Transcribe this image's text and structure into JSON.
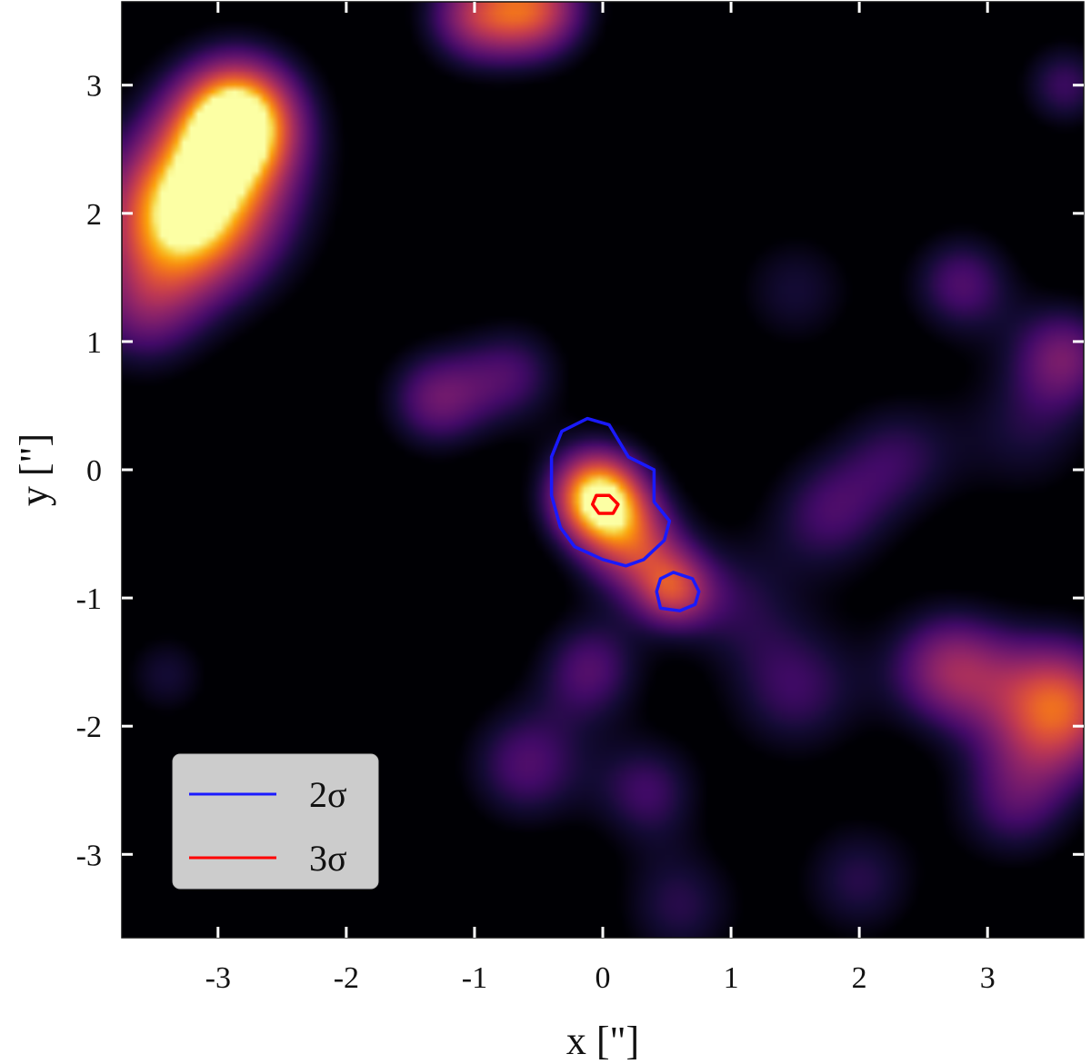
{
  "chart_data": {
    "type": "heatmap",
    "colormap": "inferno",
    "xlabel": "x [\"]",
    "ylabel": "y [\"]",
    "xlim": [
      -3.75,
      3.75
    ],
    "ylim": [
      -3.65,
      3.65
    ],
    "xticks": [
      -3,
      -2,
      -1,
      0,
      1,
      2,
      3
    ],
    "yticks": [
      -3,
      -2,
      -1,
      0,
      1,
      2,
      3
    ],
    "xtick_labels": [
      "-3",
      "-2",
      "-1",
      "0",
      "1",
      "2",
      "3"
    ],
    "ytick_labels": [
      "-3",
      "-2",
      "-1",
      "0",
      "1",
      "2",
      "3"
    ],
    "blobs": [
      {
        "x": -2.85,
        "y": 2.75,
        "sigma": 0.35,
        "amp": 0.95
      },
      {
        "x": -3.3,
        "y": 1.95,
        "sigma": 0.45,
        "amp": 0.75
      },
      {
        "x": -3.0,
        "y": 2.2,
        "sigma": 0.55,
        "amp": 0.45
      },
      {
        "x": -3.6,
        "y": 1.2,
        "sigma": 0.35,
        "amp": 0.35
      },
      {
        "x": -1.0,
        "y": 3.55,
        "sigma": 0.3,
        "amp": 0.55
      },
      {
        "x": -0.5,
        "y": 3.6,
        "sigma": 0.3,
        "amp": 0.65
      },
      {
        "x": -1.3,
        "y": 0.55,
        "sigma": 0.3,
        "amp": 0.45
      },
      {
        "x": -0.7,
        "y": 0.75,
        "sigma": 0.3,
        "amp": 0.35
      },
      {
        "x": -0.05,
        "y": -0.2,
        "sigma": 0.28,
        "amp": 1.0
      },
      {
        "x": 0.25,
        "y": -0.6,
        "sigma": 0.3,
        "amp": 0.55
      },
      {
        "x": 0.55,
        "y": -0.95,
        "sigma": 0.22,
        "amp": 0.5
      },
      {
        "x": -0.1,
        "y": -1.55,
        "sigma": 0.3,
        "amp": 0.4
      },
      {
        "x": -0.6,
        "y": -2.3,
        "sigma": 0.35,
        "amp": 0.4
      },
      {
        "x": 0.35,
        "y": -2.5,
        "sigma": 0.3,
        "amp": 0.35
      },
      {
        "x": 1.5,
        "y": -1.7,
        "sigma": 0.4,
        "amp": 0.35
      },
      {
        "x": 1.75,
        "y": -0.35,
        "sigma": 0.35,
        "amp": 0.35
      },
      {
        "x": 2.3,
        "y": 0.1,
        "sigma": 0.35,
        "amp": 0.3
      },
      {
        "x": 2.8,
        "y": 1.45,
        "sigma": 0.3,
        "amp": 0.4
      },
      {
        "x": 1.5,
        "y": 1.4,
        "sigma": 0.35,
        "amp": 0.25
      },
      {
        "x": 3.6,
        "y": 0.9,
        "sigma": 0.3,
        "amp": 0.45
      },
      {
        "x": 2.7,
        "y": -1.55,
        "sigma": 0.35,
        "amp": 0.55
      },
      {
        "x": 3.55,
        "y": -1.85,
        "sigma": 0.4,
        "amp": 0.8
      },
      {
        "x": 3.2,
        "y": -2.6,
        "sigma": 0.35,
        "amp": 0.35
      },
      {
        "x": 2.0,
        "y": -3.2,
        "sigma": 0.35,
        "amp": 0.3
      },
      {
        "x": 0.6,
        "y": -3.4,
        "sigma": 0.35,
        "amp": 0.3
      },
      {
        "x": 3.6,
        "y": 3.0,
        "sigma": 0.25,
        "amp": 0.35
      },
      {
        "x": -3.4,
        "y": -1.6,
        "sigma": 0.25,
        "amp": 0.25
      },
      {
        "x": 3.3,
        "y": 0.3,
        "sigma": 0.4,
        "amp": 0.25
      },
      {
        "x": 1.0,
        "y": -1.0,
        "sigma": 0.35,
        "amp": 0.25
      }
    ],
    "contours": [
      {
        "name": "2σ",
        "color": "#1a1aff",
        "paths": [
          [
            [
              -0.12,
              0.4
            ],
            [
              0.05,
              0.35
            ],
            [
              0.2,
              0.1
            ],
            [
              0.4,
              0.0
            ],
            [
              0.4,
              -0.25
            ],
            [
              0.52,
              -0.4
            ],
            [
              0.48,
              -0.55
            ],
            [
              0.32,
              -0.7
            ],
            [
              0.18,
              -0.75
            ],
            [
              0.0,
              -0.7
            ],
            [
              -0.22,
              -0.6
            ],
            [
              -0.33,
              -0.45
            ],
            [
              -0.4,
              -0.2
            ],
            [
              -0.4,
              0.1
            ],
            [
              -0.32,
              0.3
            ]
          ],
          [
            [
              0.45,
              -0.85
            ],
            [
              0.55,
              -0.8
            ],
            [
              0.7,
              -0.85
            ],
            [
              0.75,
              -0.95
            ],
            [
              0.72,
              -1.05
            ],
            [
              0.6,
              -1.1
            ],
            [
              0.45,
              -1.08
            ],
            [
              0.42,
              -0.95
            ]
          ]
        ]
      },
      {
        "name": "3σ",
        "color": "#ff0000",
        "paths": [
          [
            [
              -0.05,
              -0.2
            ],
            [
              0.05,
              -0.2
            ],
            [
              0.12,
              -0.27
            ],
            [
              0.08,
              -0.34
            ],
            [
              -0.03,
              -0.34
            ],
            [
              -0.08,
              -0.27
            ]
          ]
        ]
      }
    ],
    "legend": {
      "placement": "lower-left",
      "entries": [
        "2σ",
        "3σ"
      ]
    }
  }
}
